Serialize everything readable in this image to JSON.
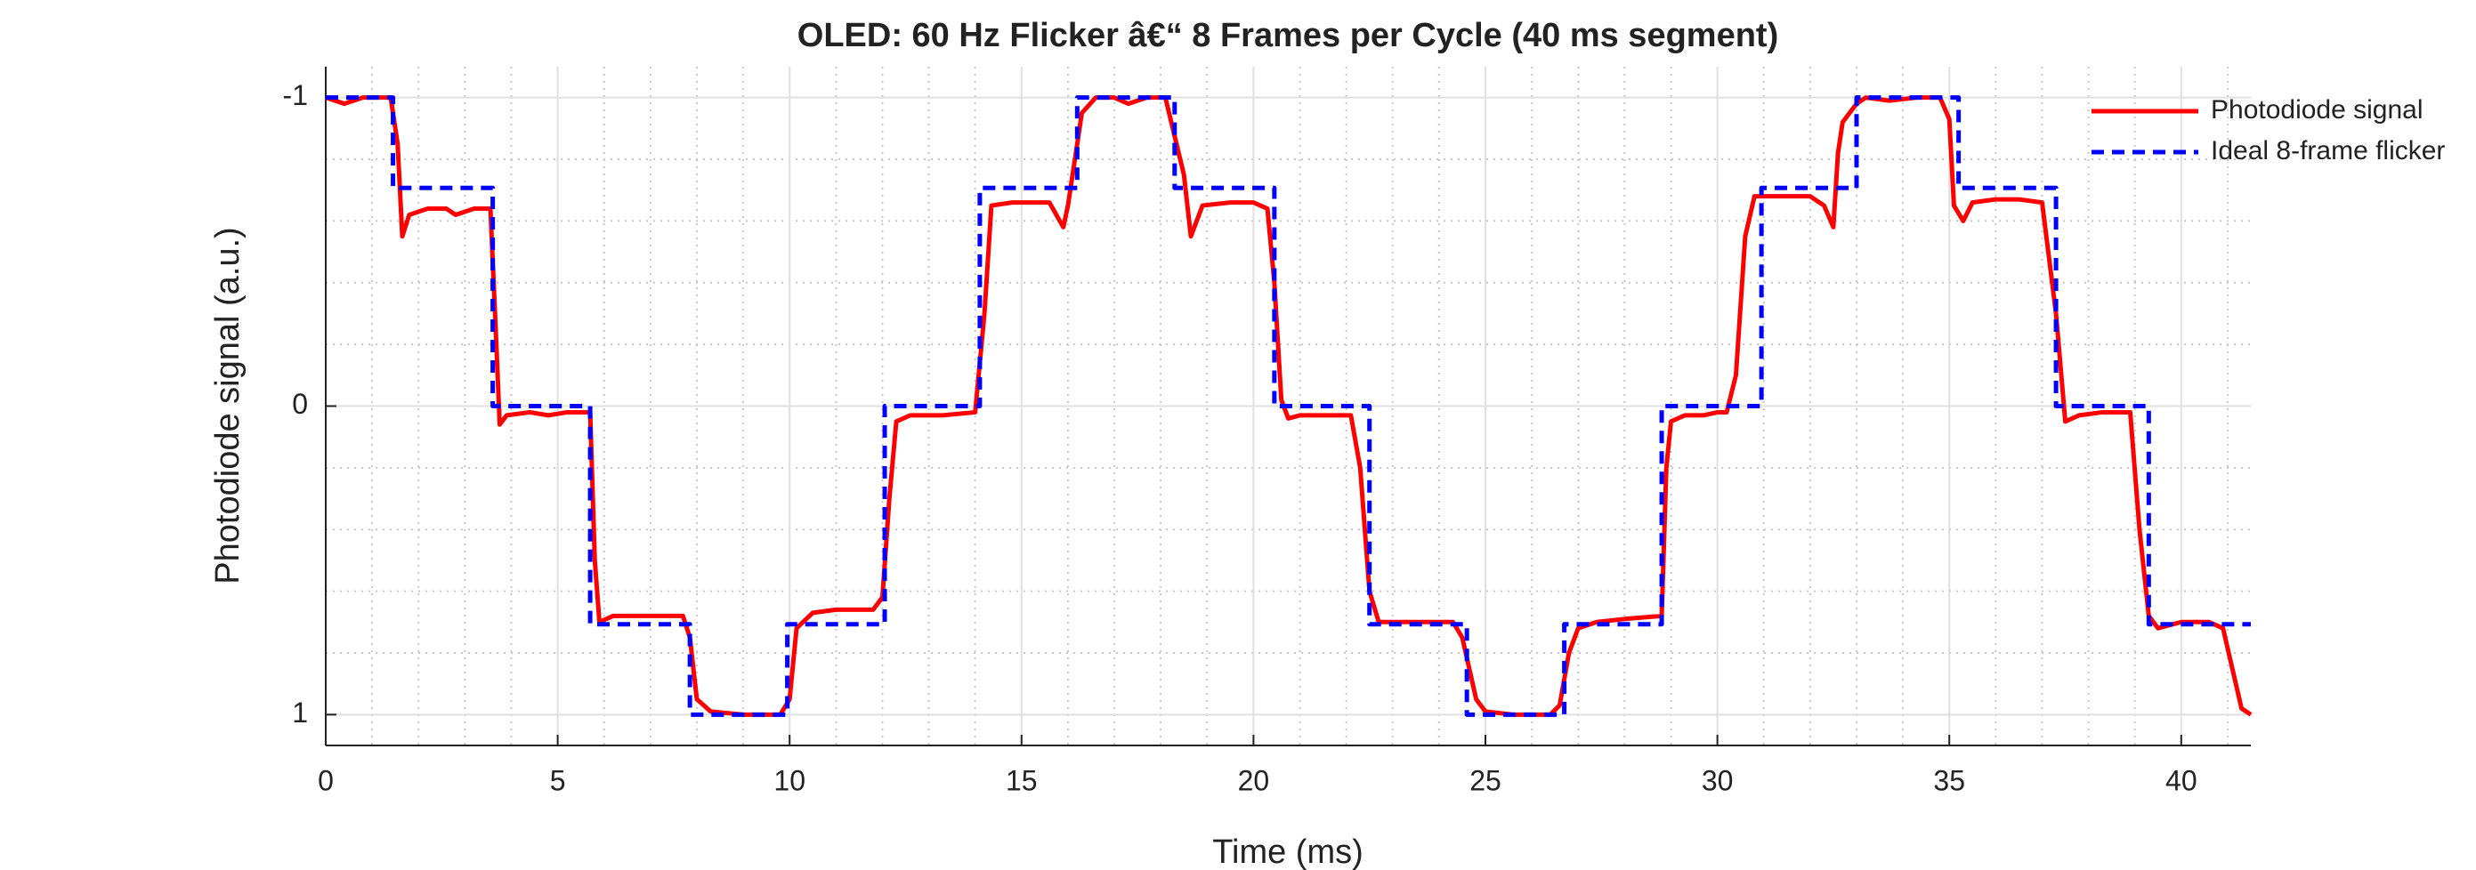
{
  "chart_data": {
    "type": "line",
    "title": "OLED: 60 Hz Flicker â€“ 8 Frames per Cycle (40 ms segment)",
    "xlabel": "Time (ms)",
    "ylabel": "Photodiode signal (a.u.)",
    "xlim": [
      0,
      41.5
    ],
    "ylim": [
      -1.1,
      1.1
    ],
    "y_reversed": true,
    "xticks": [
      0,
      5,
      10,
      15,
      20,
      25,
      30,
      35,
      40
    ],
    "yticks": [
      -1,
      0,
      1
    ],
    "xminor": [
      1,
      2,
      3,
      4,
      6,
      7,
      8,
      9,
      11,
      12,
      13,
      14,
      16,
      17,
      18,
      19,
      21,
      22,
      23,
      24,
      26,
      27,
      28,
      29,
      31,
      32,
      33,
      34,
      36,
      37,
      38,
      39,
      41
    ],
    "yminor": [
      -0.8,
      -0.6,
      -0.4,
      -0.2,
      0.2,
      0.4,
      0.6,
      0.8
    ],
    "grid": true,
    "minor_grid": true,
    "legend": "upper right",
    "series": [
      {
        "name": "Photodiode signal",
        "color": "#ff0000",
        "dash": "none",
        "x": [
          0,
          0.4,
          0.8,
          1.4,
          1.55,
          1.65,
          1.8,
          2.2,
          2.6,
          2.8,
          3.2,
          3.55,
          3.65,
          3.75,
          3.9,
          4.4,
          4.8,
          5.2,
          5.7,
          5.8,
          5.9,
          6.2,
          6.8,
          7.2,
          7.7,
          7.85,
          8.0,
          8.3,
          9.0,
          9.8,
          10.0,
          10.15,
          10.5,
          11.0,
          11.8,
          12.0,
          12.15,
          12.3,
          12.6,
          13.3,
          14.0,
          14.2,
          14.35,
          14.8,
          15.6,
          15.9,
          16.0,
          16.3,
          16.6,
          17.0,
          17.3,
          17.7,
          18.1,
          18.5,
          18.65,
          18.9,
          19.5,
          20.0,
          20.3,
          20.45,
          20.6,
          20.75,
          21.0,
          21.6,
          22.1,
          22.3,
          22.5,
          22.7,
          23.2,
          23.8,
          24.3,
          24.5,
          24.8,
          25.0,
          25.6,
          26.4,
          26.6,
          26.8,
          27.0,
          27.4,
          28.0,
          28.8,
          28.9,
          29.0,
          29.3,
          29.7,
          30.0,
          30.2,
          30.4,
          30.6,
          30.8,
          31.2,
          31.6,
          32.0,
          32.3,
          32.5,
          32.6,
          32.7,
          33.0,
          33.2,
          33.7,
          34.3,
          34.8,
          35.0,
          35.1,
          35.3,
          35.5,
          36.0,
          36.5,
          37.0,
          37.3,
          37.5,
          37.8,
          38.3,
          38.9,
          39.1,
          39.3,
          39.5,
          40.0,
          40.6,
          40.9,
          41.1,
          41.3,
          41.5
        ],
        "values": [
          -1,
          -0.98,
          -1,
          -1,
          -0.85,
          -0.55,
          -0.62,
          -0.64,
          -0.64,
          -0.62,
          -0.64,
          -0.64,
          -0.3,
          0.06,
          0.03,
          0.02,
          0.03,
          0.02,
          0.02,
          0.5,
          0.7,
          0.68,
          0.68,
          0.68,
          0.68,
          0.75,
          0.95,
          0.99,
          1.0,
          1.0,
          0.95,
          0.72,
          0.67,
          0.66,
          0.66,
          0.62,
          0.3,
          0.05,
          0.03,
          0.03,
          0.02,
          -0.3,
          -0.65,
          -0.66,
          -0.66,
          -0.58,
          -0.65,
          -0.95,
          -1,
          -1,
          -0.98,
          -1,
          -1,
          -0.75,
          -0.55,
          -0.65,
          -0.66,
          -0.66,
          -0.64,
          -0.4,
          -0.02,
          0.04,
          0.03,
          0.03,
          0.03,
          0.2,
          0.6,
          0.7,
          0.7,
          0.7,
          0.7,
          0.75,
          0.95,
          0.99,
          1.0,
          1.0,
          0.97,
          0.8,
          0.72,
          0.7,
          0.69,
          0.68,
          0.2,
          0.05,
          0.03,
          0.03,
          0.02,
          0.02,
          -0.1,
          -0.55,
          -0.68,
          -0.68,
          -0.68,
          -0.68,
          -0.65,
          -0.58,
          -0.82,
          -0.92,
          -0.98,
          -1.0,
          -0.99,
          -1.0,
          -1.0,
          -0.93,
          -0.65,
          -0.6,
          -0.66,
          -0.67,
          -0.67,
          -0.66,
          -0.3,
          0.05,
          0.03,
          0.02,
          0.02,
          0.4,
          0.68,
          0.72,
          0.7,
          0.7,
          0.72,
          0.85,
          0.98,
          1.0
        ]
      },
      {
        "name": "Ideal 8-frame flicker",
        "color": "#0000ff",
        "dash": "14 9",
        "x": [
          0,
          1.45,
          1.45,
          3.6,
          3.6,
          5.7,
          5.7,
          7.85,
          7.85,
          9.95,
          9.95,
          12.05,
          12.05,
          14.1,
          14.1,
          16.2,
          16.2,
          18.3,
          18.3,
          20.45,
          20.45,
          22.5,
          22.5,
          24.6,
          24.6,
          26.7,
          26.7,
          28.8,
          28.8,
          30.95,
          30.95,
          33.0,
          33.0,
          35.2,
          35.2,
          37.3,
          37.3,
          39.3,
          39.3,
          41.5
        ],
        "values": [
          -1,
          -1,
          -0.707,
          -0.707,
          0,
          0,
          0.707,
          0.707,
          1,
          1,
          0.707,
          0.707,
          0,
          0,
          -0.707,
          -0.707,
          -1,
          -1,
          -0.707,
          -0.707,
          0,
          0,
          0.707,
          0.707,
          1,
          1,
          0.707,
          0.707,
          0,
          0,
          -0.707,
          -0.707,
          -1,
          -1,
          -0.707,
          -0.707,
          0,
          0,
          0.707,
          0.707
        ]
      }
    ]
  }
}
